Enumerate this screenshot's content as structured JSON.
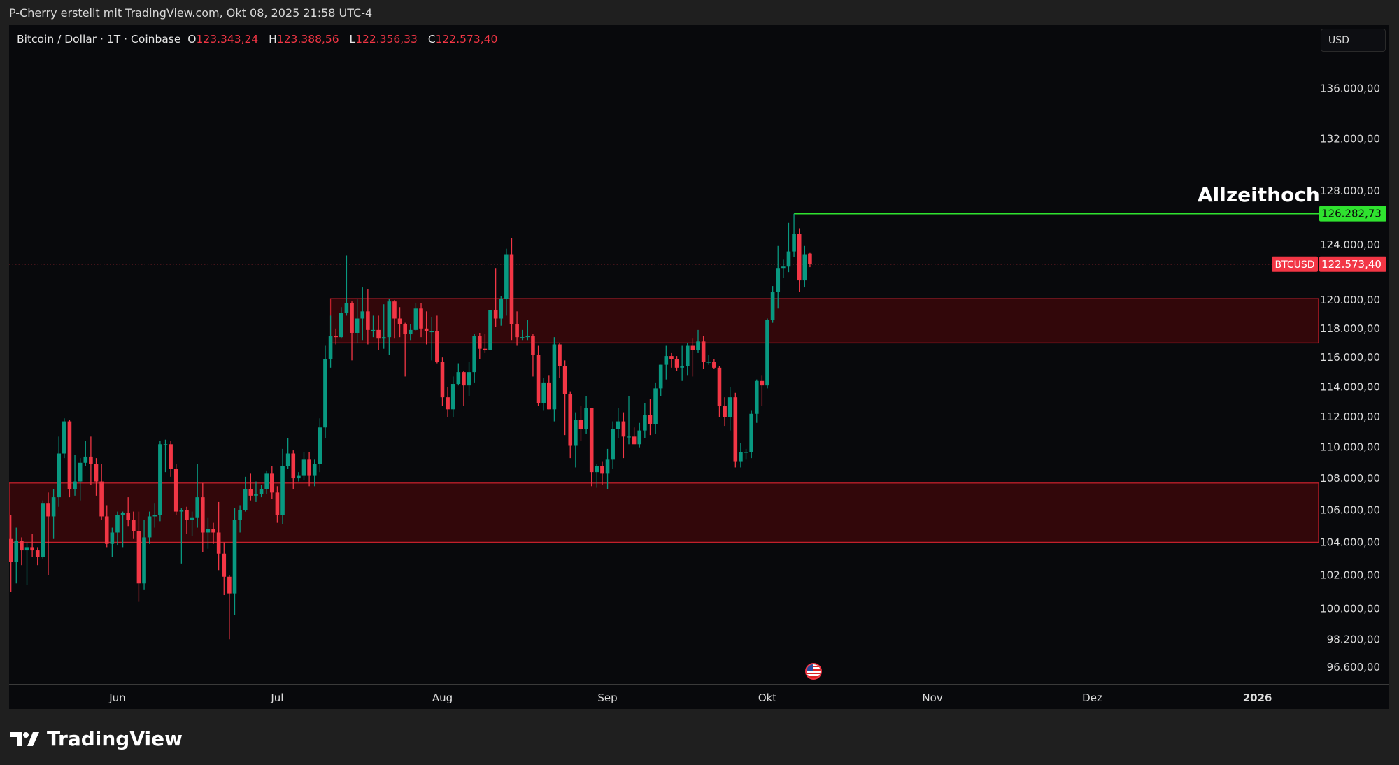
{
  "header": {
    "attribution": "P-Cherry erstellt mit TradingView.com, Okt 08, 2025 21:58 UTC-4"
  },
  "legend": {
    "symbol": "Bitcoin / Dollar · 1T · Coinbase",
    "o_label": "O",
    "o": "123.343,24",
    "h_label": "H",
    "h": "123.388,56",
    "l_label": "L",
    "l": "122.356,33",
    "c_label": "C",
    "c": "122.573,40"
  },
  "currency_button": "USD",
  "annotation": {
    "text": "Allzeithoch"
  },
  "ath_label": "126.282,73",
  "symbol_label": "BTCUSD",
  "last_price_label": "122.573,40",
  "footer": {
    "brand": "TradingView"
  },
  "colors": {
    "up": "#089981",
    "down": "#f23645",
    "ath": "#2fe22f",
    "zone": "#3a070b",
    "zone_border": "#c2202b"
  },
  "icons": {
    "event": "us-flag-economic-event-icon",
    "logo": "tradingview-logo-icon"
  },
  "chart_data": {
    "type": "candlestick",
    "title": "Bitcoin / Dollar · 1T · Coinbase",
    "start_date": "2025-05-12",
    "scale": "log",
    "ylim": [
      95800,
      139000
    ],
    "ath_value": 126282.73,
    "last_price": 122573.4,
    "zones": [
      {
        "name": "upper-resistance-zone",
        "from": 117000,
        "to": 120100,
        "start_index": 60
      },
      {
        "name": "lower-support-zone",
        "from": 104000,
        "to": 107700,
        "start_index": -2
      }
    ],
    "ath_start_index": 147,
    "y_ticks": [
      {
        "v": 136000,
        "label": "136.000,00"
      },
      {
        "v": 132000,
        "label": "132.000,00"
      },
      {
        "v": 128000,
        "label": "128.000,00"
      },
      {
        "v": 124000,
        "label": "124.000,00"
      },
      {
        "v": 120000,
        "label": "120.000,00"
      },
      {
        "v": 118000,
        "label": "118.000,00"
      },
      {
        "v": 116000,
        "label": "116.000,00"
      },
      {
        "v": 114000,
        "label": "114.000,00"
      },
      {
        "v": 112000,
        "label": "112.000,00"
      },
      {
        "v": 110000,
        "label": "110.000,00"
      },
      {
        "v": 108000,
        "label": "108.000,00"
      },
      {
        "v": 106000,
        "label": "106.000,00"
      },
      {
        "v": 104000,
        "label": "104.000,00"
      },
      {
        "v": 102000,
        "label": "102.000,00"
      },
      {
        "v": 100000,
        "label": "100.000,00"
      },
      {
        "v": 98200,
        "label": "98.200,00"
      },
      {
        "v": 96600,
        "label": "96.600,00"
      }
    ],
    "x_ticks": [
      {
        "i": 20,
        "label": "Jun"
      },
      {
        "i": 50,
        "label": "Jul"
      },
      {
        "i": 81,
        "label": "Aug"
      },
      {
        "i": 112,
        "label": "Sep"
      },
      {
        "i": 142,
        "label": "Okt"
      },
      {
        "i": 173,
        "label": "Nov"
      },
      {
        "i": 203,
        "label": "Dez"
      },
      {
        "i": 234,
        "label": "2026",
        "bold": true
      }
    ],
    "ohlc_thousands": [
      [
        104.2,
        105.7,
        101.0,
        102.8
      ],
      [
        102.8,
        104.9,
        101.5,
        104.1
      ],
      [
        104.1,
        104.3,
        102.6,
        103.5
      ],
      [
        103.5,
        104.0,
        101.4,
        103.7
      ],
      [
        103.7,
        104.5,
        103.1,
        103.5
      ],
      [
        103.5,
        103.7,
        102.6,
        103.1
      ],
      [
        103.1,
        106.6,
        103.0,
        106.4
      ],
      [
        106.4,
        107.1,
        102.0,
        105.6
      ],
      [
        105.6,
        107.3,
        104.2,
        106.8
      ],
      [
        106.8,
        110.7,
        106.2,
        109.6
      ],
      [
        109.6,
        111.9,
        109.3,
        111.7
      ],
      [
        111.7,
        111.8,
        106.8,
        107.3
      ],
      [
        107.3,
        109.5,
        106.9,
        107.8
      ],
      [
        107.8,
        109.3,
        106.6,
        109.0
      ],
      [
        109.0,
        110.4,
        108.8,
        109.4
      ],
      [
        109.4,
        110.7,
        107.6,
        108.9
      ],
      [
        108.9,
        109.3,
        106.9,
        107.8
      ],
      [
        107.8,
        108.9,
        105.4,
        105.6
      ],
      [
        105.6,
        106.3,
        103.7,
        103.9
      ],
      [
        103.9,
        104.9,
        103.1,
        104.6
      ],
      [
        104.6,
        105.9,
        103.8,
        105.7
      ],
      [
        105.7,
        105.9,
        103.7,
        105.8
      ],
      [
        105.8,
        106.8,
        105.0,
        105.4
      ],
      [
        105.4,
        105.9,
        104.2,
        104.7
      ],
      [
        104.7,
        105.9,
        100.4,
        101.5
      ],
      [
        101.5,
        105.4,
        101.1,
        104.3
      ],
      [
        104.3,
        105.9,
        103.9,
        105.6
      ],
      [
        105.6,
        106.4,
        104.9,
        105.7
      ],
      [
        105.7,
        110.4,
        105.3,
        110.2
      ],
      [
        110.2,
        110.5,
        108.4,
        110.2
      ],
      [
        110.2,
        110.4,
        108.1,
        108.6
      ],
      [
        108.6,
        108.9,
        105.7,
        105.9
      ],
      [
        105.9,
        106.1,
        102.7,
        106.0
      ],
      [
        106.0,
        106.2,
        104.5,
        105.4
      ],
      [
        105.4,
        105.9,
        104.4,
        105.5
      ],
      [
        105.5,
        108.9,
        104.9,
        106.8
      ],
      [
        106.8,
        107.7,
        103.4,
        104.6
      ],
      [
        104.6,
        105.5,
        103.6,
        104.8
      ],
      [
        104.8,
        105.2,
        103.9,
        104.6
      ],
      [
        104.6,
        106.5,
        102.3,
        103.3
      ],
      [
        103.3,
        104.0,
        100.8,
        101.9
      ],
      [
        101.9,
        102.0,
        98.2,
        100.9
      ],
      [
        100.9,
        106.1,
        99.6,
        105.4
      ],
      [
        105.4,
        106.3,
        104.6,
        106.0
      ],
      [
        106.0,
        108.1,
        105.9,
        107.3
      ],
      [
        107.3,
        108.3,
        106.6,
        106.9
      ],
      [
        106.9,
        107.8,
        106.5,
        107.0
      ],
      [
        107.0,
        107.6,
        106.8,
        107.3
      ],
      [
        107.3,
        108.5,
        107.0,
        108.3
      ],
      [
        108.3,
        108.8,
        106.7,
        107.1
      ],
      [
        107.1,
        107.5,
        105.2,
        105.7
      ],
      [
        105.7,
        109.9,
        105.1,
        108.8
      ],
      [
        108.8,
        110.6,
        108.6,
        109.6
      ],
      [
        109.6,
        109.8,
        107.3,
        108.0
      ],
      [
        108.0,
        108.4,
        107.8,
        108.2
      ],
      [
        108.2,
        109.7,
        107.9,
        109.2
      ],
      [
        109.2,
        109.7,
        107.5,
        108.2
      ],
      [
        108.2,
        109.2,
        107.5,
        108.9
      ],
      [
        108.9,
        111.9,
        108.4,
        111.3
      ],
      [
        111.3,
        116.8,
        110.6,
        115.9
      ],
      [
        115.9,
        118.9,
        115.3,
        117.5
      ],
      [
        117.5,
        118.0,
        116.9,
        117.4
      ],
      [
        117.4,
        119.5,
        117.3,
        119.1
      ],
      [
        119.1,
        123.2,
        118.9,
        119.8
      ],
      [
        119.8,
        119.9,
        115.8,
        117.7
      ],
      [
        117.7,
        120.1,
        117.0,
        118.7
      ],
      [
        118.7,
        120.9,
        117.2,
        119.2
      ],
      [
        119.2,
        120.8,
        116.9,
        117.9
      ],
      [
        117.9,
        118.9,
        117.4,
        117.9
      ],
      [
        117.9,
        118.9,
        116.5,
        117.3
      ],
      [
        117.3,
        119.7,
        116.6,
        117.4
      ],
      [
        117.4,
        120.1,
        116.2,
        119.9
      ],
      [
        119.9,
        120.0,
        117.3,
        118.7
      ],
      [
        118.7,
        119.5,
        117.4,
        118.3
      ],
      [
        118.3,
        118.4,
        114.7,
        117.6
      ],
      [
        117.6,
        118.3,
        117.2,
        117.9
      ],
      [
        117.9,
        119.8,
        117.8,
        119.4
      ],
      [
        119.4,
        119.8,
        117.4,
        118.0
      ],
      [
        118.0,
        119.2,
        116.9,
        117.8
      ],
      [
        117.8,
        118.8,
        115.8,
        117.8
      ],
      [
        117.8,
        118.9,
        115.6,
        115.7
      ],
      [
        115.7,
        116.0,
        112.7,
        113.3
      ],
      [
        113.3,
        114.0,
        112.0,
        112.5
      ],
      [
        112.5,
        114.7,
        112.0,
        114.2
      ],
      [
        114.2,
        115.6,
        114.1,
        115.0
      ],
      [
        115.0,
        115.1,
        112.7,
        114.1
      ],
      [
        114.1,
        115.7,
        113.4,
        115.0
      ],
      [
        115.0,
        117.6,
        114.3,
        117.5
      ],
      [
        117.5,
        117.7,
        115.9,
        116.6
      ],
      [
        116.6,
        117.6,
        116.3,
        116.5
      ],
      [
        116.5,
        119.3,
        116.5,
        119.3
      ],
      [
        119.3,
        122.3,
        118.1,
        118.7
      ],
      [
        118.7,
        120.3,
        118.2,
        120.1
      ],
      [
        120.1,
        123.7,
        118.9,
        123.3
      ],
      [
        123.3,
        124.5,
        117.2,
        118.3
      ],
      [
        118.3,
        119.2,
        116.8,
        117.4
      ],
      [
        117.4,
        117.9,
        117.2,
        117.4
      ],
      [
        117.4,
        118.6,
        117.2,
        117.5
      ],
      [
        117.5,
        117.6,
        114.7,
        116.2
      ],
      [
        116.2,
        116.8,
        112.7,
        112.9
      ],
      [
        112.9,
        114.6,
        112.4,
        114.3
      ],
      [
        114.3,
        114.8,
        112.5,
        112.5
      ],
      [
        112.5,
        117.4,
        111.7,
        116.9
      ],
      [
        116.9,
        117.0,
        114.6,
        115.4
      ],
      [
        115.4,
        115.8,
        110.8,
        113.5
      ],
      [
        113.5,
        113.7,
        109.3,
        110.1
      ],
      [
        110.1,
        112.3,
        108.7,
        111.8
      ],
      [
        111.8,
        112.7,
        110.4,
        111.2
      ],
      [
        111.2,
        113.4,
        110.9,
        112.6
      ],
      [
        112.6,
        112.6,
        107.5,
        108.4
      ],
      [
        108.4,
        108.9,
        107.4,
        108.8
      ],
      [
        108.8,
        109.1,
        107.6,
        108.3
      ],
      [
        108.3,
        109.9,
        107.3,
        109.2
      ],
      [
        109.2,
        111.7,
        108.6,
        111.2
      ],
      [
        111.2,
        112.6,
        110.6,
        111.7
      ],
      [
        111.7,
        112.3,
        109.3,
        110.7
      ],
      [
        110.7,
        113.4,
        110.2,
        110.7
      ],
      [
        110.7,
        111.3,
        110.2,
        110.2
      ],
      [
        110.2,
        111.6,
        110.0,
        111.1
      ],
      [
        111.1,
        112.9,
        110.6,
        112.1
      ],
      [
        112.1,
        113.2,
        110.8,
        111.5
      ],
      [
        111.5,
        114.3,
        110.9,
        113.9
      ],
      [
        113.9,
        115.5,
        113.4,
        115.5
      ],
      [
        115.5,
        116.8,
        114.5,
        116.1
      ],
      [
        116.1,
        116.3,
        115.3,
        115.9
      ],
      [
        115.9,
        116.1,
        115.1,
        115.3
      ],
      [
        115.3,
        116.8,
        114.4,
        115.4
      ],
      [
        115.4,
        117.0,
        114.8,
        116.8
      ],
      [
        116.8,
        117.3,
        114.7,
        116.5
      ],
      [
        116.5,
        117.9,
        116.3,
        117.1
      ],
      [
        117.1,
        117.5,
        115.2,
        115.7
      ],
      [
        115.7,
        116.2,
        115.5,
        115.7
      ],
      [
        115.7,
        115.9,
        115.2,
        115.3
      ],
      [
        115.3,
        115.4,
        112.0,
        112.7
      ],
      [
        112.7,
        113.3,
        111.4,
        112.0
      ],
      [
        112.0,
        114.0,
        111.1,
        113.3
      ],
      [
        113.3,
        113.6,
        108.7,
        109.1
      ],
      [
        109.1,
        110.3,
        108.7,
        109.7
      ],
      [
        109.7,
        109.9,
        109.2,
        109.7
      ],
      [
        109.7,
        112.4,
        109.3,
        112.2
      ],
      [
        112.2,
        114.5,
        111.6,
        114.4
      ],
      [
        114.4,
        114.8,
        112.7,
        114.1
      ],
      [
        114.1,
        118.7,
        113.9,
        118.6
      ],
      [
        118.6,
        121.0,
        118.4,
        120.6
      ],
      [
        120.6,
        123.9,
        119.4,
        122.3
      ],
      [
        122.3,
        122.9,
        121.6,
        122.4
      ],
      [
        122.4,
        125.6,
        122.0,
        123.5
      ],
      [
        123.5,
        126.28,
        123.1,
        124.8
      ],
      [
        124.8,
        125.2,
        120.6,
        121.4
      ],
      [
        121.4,
        123.9,
        120.9,
        123.3
      ],
      [
        123.343,
        123.389,
        122.356,
        122.573
      ]
    ]
  }
}
